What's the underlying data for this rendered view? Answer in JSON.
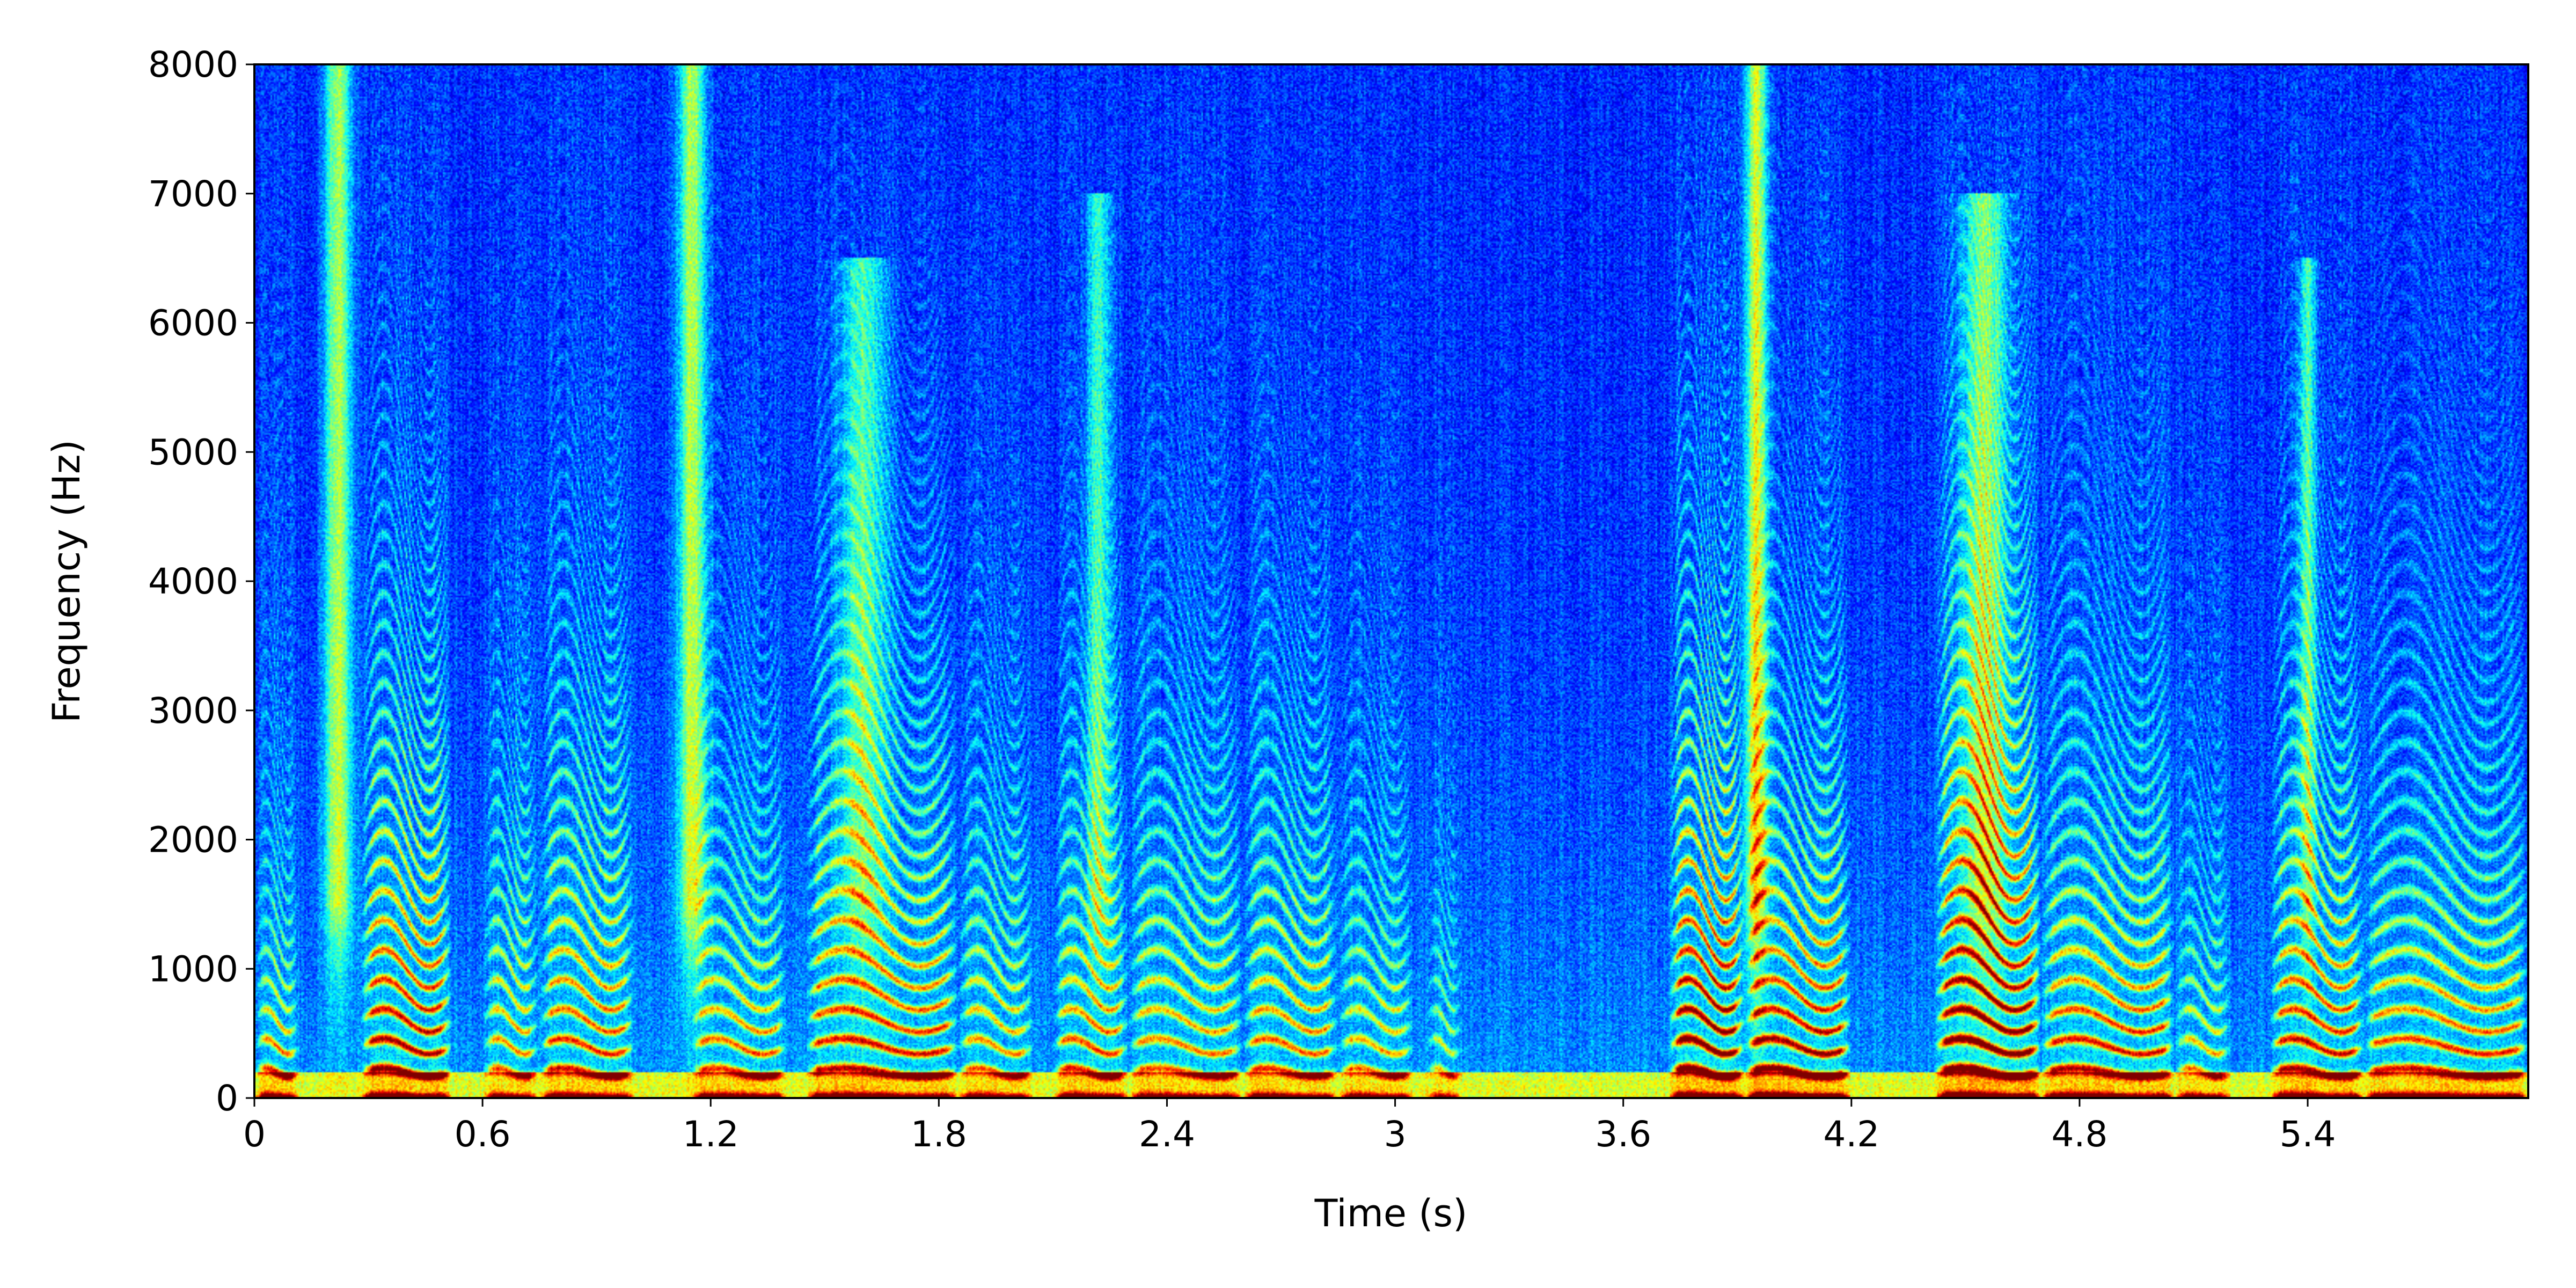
{
  "chart_data": {
    "type": "heatmap",
    "subtype": "spectrogram",
    "title": "",
    "xlabel": "Time (s)",
    "ylabel": "Frequency (Hz)",
    "xlim": [
      0,
      5.98
    ],
    "ylim": [
      0,
      8000
    ],
    "xticks": [
      0,
      0.6,
      1.2,
      1.8,
      2.4,
      3,
      3.6,
      4.2,
      4.8,
      5.4
    ],
    "xtick_labels": [
      "0",
      "0.6",
      "1.2",
      "1.8",
      "2.4",
      "3",
      "3.6",
      "4.2",
      "4.8",
      "5.4"
    ],
    "yticks": [
      0,
      1000,
      2000,
      3000,
      4000,
      5000,
      6000,
      7000,
      8000
    ],
    "ytick_labels": [
      "0",
      "1000",
      "2000",
      "3000",
      "4000",
      "5000",
      "6000",
      "7000",
      "8000"
    ],
    "colormap": "jet",
    "grid": false,
    "colorbar": false,
    "fundamental_hz": 200,
    "voiced_segments": [
      {
        "start": 0.0,
        "end": 0.12,
        "intensity": 0.75,
        "formant_top_hz": 700
      },
      {
        "start": 0.28,
        "end": 0.52,
        "intensity": 0.85,
        "formant_top_hz": 2000
      },
      {
        "start": 0.6,
        "end": 0.75,
        "intensity": 0.6,
        "formant_top_hz": 1500
      },
      {
        "start": 0.75,
        "end": 1.0,
        "intensity": 0.7,
        "formant_top_hz": 1800
      },
      {
        "start": 1.15,
        "end": 1.4,
        "intensity": 0.7,
        "formant_top_hz": 1000
      },
      {
        "start": 1.45,
        "end": 1.85,
        "intensity": 0.75,
        "formant_top_hz": 1700
      },
      {
        "start": 1.85,
        "end": 2.05,
        "intensity": 0.6,
        "formant_top_hz": 1300
      },
      {
        "start": 2.1,
        "end": 2.3,
        "intensity": 0.7,
        "formant_top_hz": 1200
      },
      {
        "start": 2.3,
        "end": 2.6,
        "intensity": 0.6,
        "formant_top_hz": 1500
      },
      {
        "start": 2.6,
        "end": 2.85,
        "intensity": 0.65,
        "formant_top_hz": 1500
      },
      {
        "start": 2.85,
        "end": 3.05,
        "intensity": 0.6,
        "formant_top_hz": 1000
      },
      {
        "start": 3.08,
        "end": 3.18,
        "intensity": 0.5,
        "formant_top_hz": 800
      },
      {
        "start": 3.72,
        "end": 3.92,
        "intensity": 1.0,
        "formant_top_hz": 2000
      },
      {
        "start": 3.92,
        "end": 4.2,
        "intensity": 0.95,
        "formant_top_hz": 1200
      },
      {
        "start": 4.42,
        "end": 4.7,
        "intensity": 1.0,
        "formant_top_hz": 2000
      },
      {
        "start": 4.7,
        "end": 5.05,
        "intensity": 0.8,
        "formant_top_hz": 1200
      },
      {
        "start": 5.05,
        "end": 5.2,
        "intensity": 0.6,
        "formant_top_hz": 800
      },
      {
        "start": 5.3,
        "end": 5.55,
        "intensity": 0.8,
        "formant_top_hz": 1500
      },
      {
        "start": 5.55,
        "end": 5.98,
        "intensity": 0.75,
        "formant_top_hz": 1100
      }
    ],
    "fricative_bursts": [
      {
        "time": 0.22,
        "width": 0.05,
        "intensity": 0.9,
        "low_hz": 1500,
        "high_hz": 8000
      },
      {
        "time": 1.15,
        "width": 0.05,
        "intensity": 0.9,
        "low_hz": 1500,
        "high_hz": 8000
      },
      {
        "time": 1.6,
        "width": 0.08,
        "intensity": 0.6,
        "low_hz": 1500,
        "high_hz": 6500
      },
      {
        "time": 2.22,
        "width": 0.04,
        "intensity": 0.6,
        "low_hz": 1500,
        "high_hz": 7000
      },
      {
        "time": 3.95,
        "width": 0.04,
        "intensity": 0.95,
        "low_hz": 1500,
        "high_hz": 8000
      },
      {
        "time": 4.55,
        "width": 0.08,
        "intensity": 0.75,
        "low_hz": 1500,
        "high_hz": 7000
      },
      {
        "time": 5.4,
        "width": 0.03,
        "intensity": 0.6,
        "low_hz": 1500,
        "high_hz": 6500
      }
    ]
  }
}
